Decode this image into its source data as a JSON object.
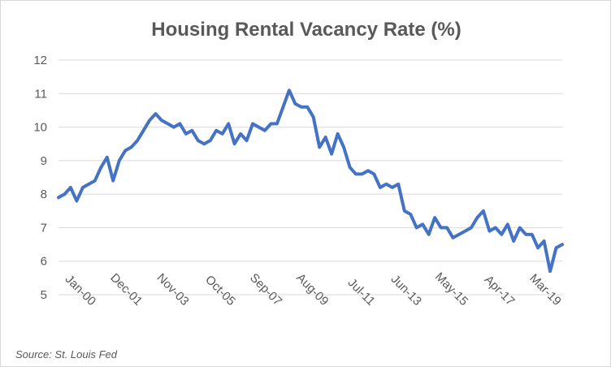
{
  "chart_data": {
    "type": "line",
    "title": "Housing Rental Vacancy Rate (%)",
    "xlabel": "",
    "ylabel": "",
    "ylim": [
      5,
      12
    ],
    "yticks": [
      5,
      6,
      7,
      8,
      9,
      10,
      11,
      12
    ],
    "x_tick_labels": [
      "Jan-00",
      "Dec-01",
      "Nov-03",
      "Oct-05",
      "Sep-07",
      "Aug-09",
      "Jul-11",
      "Jun-13",
      "May-15",
      "Apr-17",
      "Mar-19"
    ],
    "grid": "horizontal",
    "legend": "none",
    "line_color": "#4472C4",
    "source": "Source: St. Louis Fed",
    "x": [
      "2000-Q1",
      "2000-Q2",
      "2000-Q3",
      "2000-Q4",
      "2001-Q1",
      "2001-Q2",
      "2001-Q3",
      "2001-Q4",
      "2002-Q1",
      "2002-Q2",
      "2002-Q3",
      "2002-Q4",
      "2003-Q1",
      "2003-Q2",
      "2003-Q3",
      "2003-Q4",
      "2004-Q1",
      "2004-Q2",
      "2004-Q3",
      "2004-Q4",
      "2005-Q1",
      "2005-Q2",
      "2005-Q3",
      "2005-Q4",
      "2006-Q1",
      "2006-Q2",
      "2006-Q3",
      "2006-Q4",
      "2007-Q1",
      "2007-Q2",
      "2007-Q3",
      "2007-Q4",
      "2008-Q1",
      "2008-Q2",
      "2008-Q3",
      "2008-Q4",
      "2009-Q1",
      "2009-Q2",
      "2009-Q3",
      "2009-Q4",
      "2010-Q1",
      "2010-Q2",
      "2010-Q3",
      "2010-Q4",
      "2011-Q1",
      "2011-Q2",
      "2011-Q3",
      "2011-Q4",
      "2012-Q1",
      "2012-Q2",
      "2012-Q3",
      "2012-Q4",
      "2013-Q1",
      "2013-Q2",
      "2013-Q3",
      "2013-Q4",
      "2014-Q1",
      "2014-Q2",
      "2014-Q3",
      "2014-Q4",
      "2015-Q1",
      "2015-Q2",
      "2015-Q3",
      "2015-Q4",
      "2016-Q1",
      "2016-Q2",
      "2016-Q3",
      "2016-Q4",
      "2017-Q1",
      "2017-Q2",
      "2017-Q3",
      "2017-Q4",
      "2018-Q1",
      "2018-Q2",
      "2018-Q3",
      "2018-Q4",
      "2019-Q1",
      "2019-Q2",
      "2019-Q3",
      "2019-Q4",
      "2020-Q1",
      "2020-Q2",
      "2020-Q3",
      "2020-Q4"
    ],
    "values": [
      7.9,
      8.0,
      8.2,
      7.8,
      8.2,
      8.3,
      8.4,
      8.8,
      9.1,
      8.4,
      9.0,
      9.3,
      9.4,
      9.6,
      9.9,
      10.2,
      10.4,
      10.2,
      10.1,
      10.0,
      10.1,
      9.8,
      9.9,
      9.6,
      9.5,
      9.6,
      9.9,
      9.8,
      10.1,
      9.5,
      9.8,
      9.6,
      10.1,
      10.0,
      9.9,
      10.1,
      10.1,
      10.6,
      11.1,
      10.7,
      10.6,
      10.6,
      10.3,
      9.4,
      9.7,
      9.2,
      9.8,
      9.4,
      8.8,
      8.6,
      8.6,
      8.7,
      8.6,
      8.2,
      8.3,
      8.2,
      8.3,
      7.5,
      7.4,
      7.0,
      7.1,
      6.8,
      7.3,
      7.0,
      7.0,
      6.7,
      6.8,
      6.9,
      7.0,
      7.3,
      7.5,
      6.9,
      7.0,
      6.8,
      7.1,
      6.6,
      7.0,
      6.8,
      6.8,
      6.4,
      6.6,
      5.7,
      6.4,
      6.5
    ]
  }
}
